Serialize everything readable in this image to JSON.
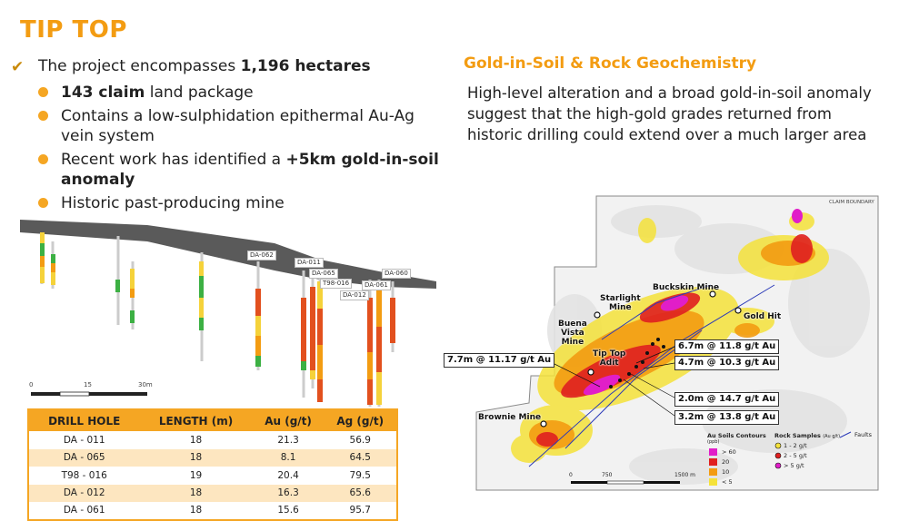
{
  "title": "TIP TOP",
  "main_bullet": {
    "text_pre": "The project encompasses ",
    "text_bold": "1,196 hectares"
  },
  "sub_bullets": [
    {
      "bold_pre": "143 claim",
      "text": " land package",
      "bold_post": ""
    },
    {
      "bold_pre": "",
      "text": "Contains a low-sulphidation epithermal Au-Ag vein system",
      "bold_post": ""
    },
    {
      "bold_pre": "",
      "text": "Recent work has identified a ",
      "bold_post": "+5km gold-in-soil anomaly"
    },
    {
      "bold_pre": "",
      "text": "Historic past-producing mine",
      "bold_post": ""
    }
  ],
  "right_heading": "Gold-in-Soil & Rock Geochemistry",
  "right_text": "High-level alteration and a broad gold-in-soil anomaly suggest that the high-gold grades returned from historic drilling could extend over a much larger area",
  "section": {
    "hole_labels": [
      "DA-062",
      "DA-011",
      "DA-065",
      "T98-016",
      "DA-012",
      "DA-061",
      "DA-060"
    ],
    "scale": [
      "0",
      "15",
      "30m"
    ]
  },
  "table": {
    "headers": [
      "DRILL HOLE",
      "LENGTH (m)",
      "Au (g/t)",
      "Ag (g/t)"
    ],
    "rows": [
      [
        "DA - 011",
        "18",
        "21.3",
        "56.9"
      ],
      [
        "DA - 065",
        "18",
        "8.1",
        "64.5"
      ],
      [
        "T98 - 016",
        "19",
        "20.4",
        "79.5"
      ],
      [
        "DA - 012",
        "18",
        "16.3",
        "65.6"
      ],
      [
        "DA - 061",
        "18",
        "15.6",
        "95.7"
      ]
    ]
  },
  "map": {
    "claim_label": "CLAIM BOUNDARY",
    "place_labels": {
      "starlight": "Starlight\nMine",
      "buckskin": "Buckskin Mine",
      "gold_hit": "Gold Hit",
      "buena_vista": "Buena\nVista\nMine",
      "tip_top": "Tip Top\nAdit",
      "brownie": "Brownie Mine"
    },
    "callouts": [
      "7.7m @ 11.17 g/t Au",
      "6.7m @ 11.8 g/t Au",
      "4.7m @ 10.3 g/t Au",
      "2.0m @ 14.7 g/t Au",
      "3.2m @ 13.8 g/t Au"
    ],
    "legend": {
      "soil_title": "Au Soils Contours",
      "soil_unit": "(ppb)",
      "soil_items": [
        {
          "label": "> 60",
          "color": "#e11ec8"
        },
        {
          "label": "20",
          "color": "#e02020"
        },
        {
          "label": "10",
          "color": "#f39c12"
        },
        {
          "label": "< 5",
          "color": "#f5e23a"
        }
      ],
      "rock_title": "Rock Samples",
      "rock_unit": "(Au g/t)",
      "rock_items": [
        {
          "label": "1 - 2 g/t",
          "color": "#f5e23a"
        },
        {
          "label": "2 - 5 g/t",
          "color": "#e02020"
        },
        {
          "label": "> 5 g/t",
          "color": "#e11ec8"
        }
      ],
      "faults_label": "Faults"
    },
    "scale": [
      "0",
      "750",
      "1500 m"
    ]
  },
  "colors": {
    "accent": "#f39c12",
    "table_header": "#f5a623",
    "table_alt_row": "#fde6c0"
  }
}
